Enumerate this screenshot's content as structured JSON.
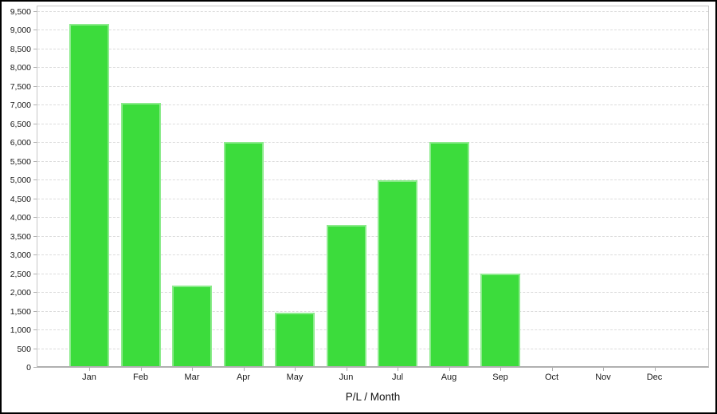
{
  "window": {
    "background": "#ffffff",
    "border_color": "#000000"
  },
  "chart_data": {
    "type": "bar",
    "categories": [
      "Jan",
      "Feb",
      "Mar",
      "Apr",
      "May",
      "Jun",
      "Jul",
      "Aug",
      "Sep",
      "Oct",
      "Nov",
      "Dec"
    ],
    "values": [
      9190,
      7070,
      2190,
      6020,
      1480,
      3820,
      5000,
      6020,
      2520,
      0,
      0,
      0
    ],
    "title": "",
    "xlabel": "P/L / Month",
    "ylabel": "",
    "ylim": [
      0,
      9670
    ],
    "ytick_min": 0,
    "ytick_max": 9500,
    "ytick_step": 500,
    "grid": "horizontal-dashed",
    "legend": "none",
    "colors": {
      "bar_fill": "#3cdc3c",
      "bar_edge": "#8ceb8c",
      "gridline": "#dcdcdc",
      "plot_border": "#c6c6c6",
      "axis_line": "#b0b0b0",
      "label_text": "#1a1a1a"
    }
  }
}
